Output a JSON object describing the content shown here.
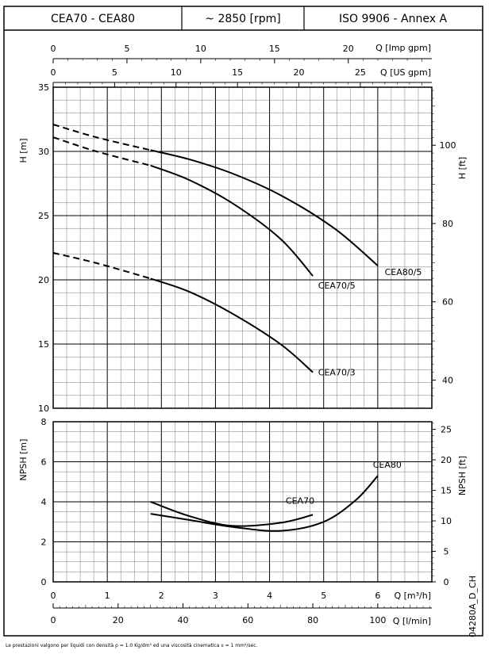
{
  "header": {
    "model": "CEA70 - CEA80",
    "speed": "~ 2850 [rpm]",
    "standard": "ISO 9906 - Annex A"
  },
  "footer_note": "Le prestazioni valgono per liquidi con densità ρ = 1.0 Kg/dm³ ed una viscosità cinematica ν = 1 mm²/sec.",
  "drawing_code": "04280A_D_CH",
  "chart_data": [
    {
      "type": "line",
      "panel": "head",
      "ylabel": "H [m]",
      "ylabel_right": "H [ft]",
      "ylim": [
        10,
        35
      ],
      "y_ticks": [
        10,
        15,
        20,
        25,
        30,
        35
      ],
      "y_right_ticks": [
        40,
        60,
        80,
        100
      ],
      "top_axis_1": {
        "label": "Q [Imp gpm]",
        "ticks": [
          0,
          5,
          10,
          15,
          20
        ]
      },
      "top_axis_2": {
        "label": "Q [US gpm]",
        "ticks": [
          0,
          5,
          10,
          15,
          20,
          25
        ]
      },
      "x_unit": "m3/h",
      "xlim": [
        0,
        7
      ],
      "grid": true,
      "series": [
        {
          "name": "CEA80/5",
          "dashed": {
            "x": [
              0,
              0.8,
              1.8
            ],
            "y": [
              32.1,
              31.1,
              30.1
            ]
          },
          "solid": {
            "x": [
              1.8,
              2.5,
              3.3,
              4.2,
              5.2,
              6.0
            ],
            "y": [
              30.1,
              29.4,
              28.3,
              26.6,
              24.0,
              21.1
            ]
          }
        },
        {
          "name": "CEA70/5",
          "dashed": {
            "x": [
              0,
              0.8,
              1.8
            ],
            "y": [
              31.1,
              30.0,
              28.9
            ]
          },
          "solid": {
            "x": [
              1.8,
              2.5,
              3.3,
              4.2,
              4.8
            ],
            "y": [
              28.9,
              27.8,
              26.0,
              23.2,
              20.3
            ]
          }
        },
        {
          "name": "CEA70/3",
          "dashed": {
            "x": [
              0,
              0.8,
              1.8
            ],
            "y": [
              22.1,
              21.3,
              20.1
            ]
          },
          "solid": {
            "x": [
              1.8,
              2.5,
              3.3,
              4.2,
              4.8
            ],
            "y": [
              20.1,
              19.1,
              17.4,
              15.0,
              12.8
            ]
          }
        }
      ]
    },
    {
      "type": "line",
      "panel": "npsh",
      "ylabel": "NPSH [m]",
      "ylabel_right": "NPSH [ft]",
      "ylim": [
        0,
        8
      ],
      "y_ticks": [
        0,
        2,
        4,
        6,
        8
      ],
      "y_right_ticks": [
        0,
        5,
        10,
        15,
        20,
        25
      ],
      "xlabel": "Q [m³/h]",
      "x_ticks": [
        0,
        1,
        2,
        3,
        4,
        5,
        6
      ],
      "bottom_axis_2": {
        "label": "Q [l/min]",
        "ticks": [
          0,
          20,
          40,
          60,
          80,
          100
        ]
      },
      "xlim": [
        0,
        7
      ],
      "grid": true,
      "series": [
        {
          "name": "CEA70",
          "x": [
            1.8,
            2.5,
            3.3,
            4.2,
            4.8
          ],
          "y": [
            4.0,
            3.3,
            2.8,
            2.95,
            3.35
          ]
        },
        {
          "name": "CEA80",
          "x": [
            1.8,
            2.5,
            3.3,
            4.2,
            5.0,
            5.6,
            6.0
          ],
          "y": [
            3.4,
            3.1,
            2.75,
            2.55,
            3.0,
            4.1,
            5.3
          ]
        }
      ]
    }
  ]
}
